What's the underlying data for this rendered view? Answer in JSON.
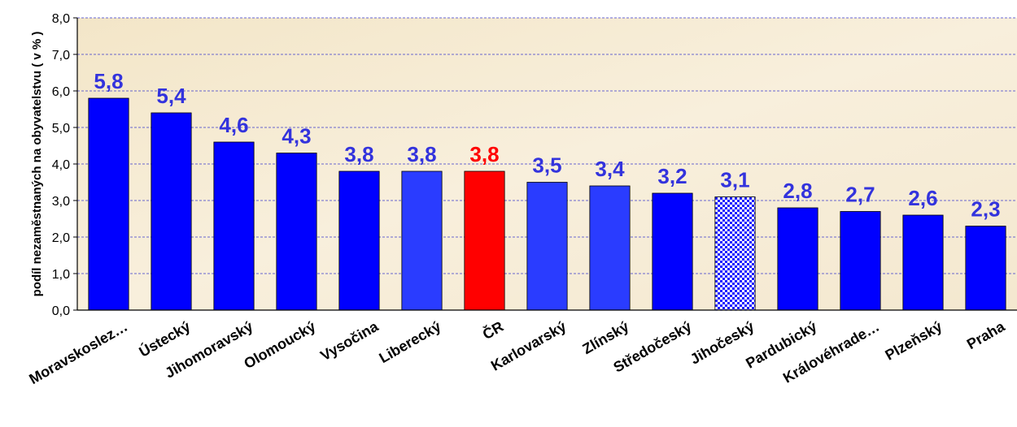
{
  "chart_data": {
    "type": "bar",
    "title": "",
    "ylabel": "podíl nezaměstnaných na obyvatelstvu  ( v % )",
    "xlabel": "",
    "ylim": [
      0,
      8
    ],
    "y_ticks": [
      "0,0",
      "1,0",
      "2,0",
      "3,0",
      "4,0",
      "5,0",
      "6,0",
      "7,0",
      "8,0"
    ],
    "grid": true,
    "categories": [
      "Moravskoslez…",
      "Ústecký",
      "Jihomoravský",
      "Olomoucký",
      "Vysočina",
      "Liberecký",
      "ČR",
      "Karlovarský",
      "Zlínský",
      "Středočeský",
      "Jihočeský",
      "Pardubický",
      "Královéhrade…",
      "Plzeňský",
      "Praha"
    ],
    "values": [
      5.8,
      5.4,
      4.6,
      4.3,
      3.8,
      3.8,
      3.8,
      3.5,
      3.4,
      3.2,
      3.1,
      2.8,
      2.7,
      2.6,
      2.3
    ],
    "value_labels": [
      "5,8",
      "5,4",
      "4,6",
      "4,3",
      "3,8",
      "3,8",
      "3,8",
      "3,5",
      "3,4",
      "3,2",
      "3,1",
      "2,8",
      "2,7",
      "2,6",
      "2,3"
    ],
    "colors": {
      "default_bar": "#0000ff",
      "alt_bar": "#2a3cff",
      "highlight_bar": "#ff0000",
      "pattern_bar": "#1a1aff",
      "default_label": "#3333dd",
      "highlight_label": "#ff0000",
      "plot_background": "#f6ecd6",
      "gridline": "#3a3acc"
    },
    "bar_styles": [
      "default",
      "default",
      "default",
      "default",
      "default",
      "alt",
      "highlight",
      "alt",
      "alt",
      "default",
      "pattern",
      "default",
      "default",
      "default",
      "default"
    ]
  }
}
